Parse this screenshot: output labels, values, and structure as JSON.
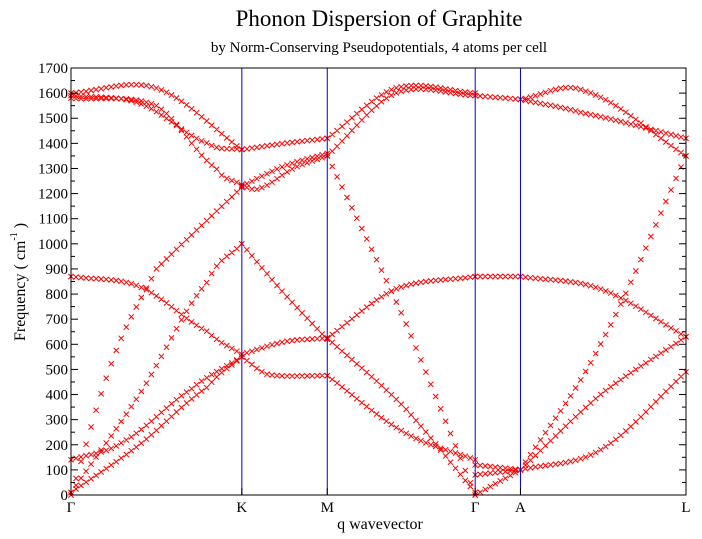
{
  "chart_data": {
    "type": "scatter",
    "title": "Phonon Dispersion of Graphite",
    "subtitle": "by Norm-Conserving Pseudopotentials, 4 atoms per cell",
    "xlabel": "q wavevector",
    "ylabel_prefix": "Frequency ( cm",
    "ylabel_sup": "-1",
    "ylabel_suffix": " )",
    "ylim": [
      0,
      1700
    ],
    "y_ticks": [
      0,
      100,
      200,
      300,
      400,
      500,
      600,
      700,
      800,
      900,
      1000,
      1100,
      1200,
      1300,
      1400,
      1500,
      1600,
      1700
    ],
    "x_points": [
      {
        "label": "Γ",
        "x": 0
      },
      {
        "label": "K",
        "x": 1.0
      },
      {
        "label": "M",
        "x": 1.5
      },
      {
        "label": "Γ",
        "x": 2.366
      },
      {
        "label": "A",
        "x": 2.631
      },
      {
        "label": "L",
        "x": 3.6
      }
    ],
    "xlim": [
      0,
      3.6
    ],
    "grid": "vertical lines at high-symmetry points",
    "marker": "x",
    "marker_color": "#ff0000",
    "line_color": "#0000cc",
    "series": [
      {
        "x": [
          0,
          0.5,
          1.0
        ],
        "values": [
          1600,
          1620,
          1375
        ]
      },
      {
        "x": [
          0,
          0.4,
          0.8,
          1.0
        ],
        "values": [
          1590,
          1560,
          1400,
          1375
        ]
      },
      {
        "x": [
          0,
          0.5,
          0.85,
          1.0
        ],
        "values": [
          1580,
          1550,
          1300,
          1235
        ]
      },
      {
        "x": [
          0,
          0.25,
          0.5,
          1.0
        ],
        "values": [
          0,
          550,
          900,
          1225
        ]
      },
      {
        "x": [
          0,
          0.4,
          0.8,
          1.0
        ],
        "values": [
          10,
          400,
          850,
          1000
        ]
      },
      {
        "x": [
          0,
          0.4,
          0.8,
          1.0
        ],
        "values": [
          870,
          830,
          650,
          560
        ]
      },
      {
        "x": [
          0,
          0.4,
          0.8,
          1.0
        ],
        "values": [
          10,
          200,
          430,
          550
        ]
      },
      {
        "x": [
          0,
          0.3,
          0.7,
          1.0
        ],
        "values": [
          140,
          210,
          420,
          550
        ]
      },
      {
        "x": [
          1.0,
          1.25,
          1.5
        ],
        "values": [
          1375,
          1400,
          1420
        ]
      },
      {
        "x": [
          1.0,
          1.1,
          1.3,
          1.5
        ],
        "values": [
          1230,
          1220,
          1300,
          1350
        ]
      },
      {
        "x": [
          1.0,
          1.25,
          1.5
        ],
        "values": [
          1230,
          1310,
          1360
        ]
      },
      {
        "x": [
          1.0,
          1.25,
          1.5
        ],
        "values": [
          1000,
          800,
          620
        ]
      },
      {
        "x": [
          1.0,
          1.25,
          1.5
        ],
        "values": [
          560,
          610,
          625
        ]
      },
      {
        "x": [
          1.0,
          1.15,
          1.5
        ],
        "values": [
          550,
          480,
          475
        ]
      },
      {
        "x": [
          1.5,
          1.9,
          2.366
        ],
        "values": [
          1420,
          1620,
          1600
        ]
      },
      {
        "x": [
          1.5,
          1.9,
          2.366
        ],
        "values": [
          1350,
          1600,
          1590
        ]
      },
      {
        "x": [
          1.5,
          1.9,
          2.366
        ],
        "values": [
          625,
          820,
          870
        ]
      },
      {
        "x": [
          1.5,
          1.95,
          2.366
        ],
        "values": [
          1350,
          700,
          0
        ]
      },
      {
        "x": [
          1.5,
          1.95,
          2.366
        ],
        "values": [
          625,
          350,
          10
        ]
      },
      {
        "x": [
          1.5,
          1.95,
          2.366
        ],
        "values": [
          475,
          250,
          140
        ]
      },
      {
        "x": [
          2.366,
          2.631
        ],
        "values": [
          1590,
          1575
        ]
      },
      {
        "x": [
          2.366,
          2.631
        ],
        "values": [
          870,
          870
        ]
      },
      {
        "x": [
          2.366,
          2.631
        ],
        "values": [
          120,
          100
        ]
      },
      {
        "x": [
          2.366,
          2.631
        ],
        "values": [
          80,
          100
        ]
      },
      {
        "x": [
          2.366,
          2.631
        ],
        "values": [
          0,
          100
        ]
      },
      {
        "x": [
          2.631,
          3.0,
          3.6
        ],
        "values": [
          1575,
          1610,
          1350
        ]
      },
      {
        "x": [
          2.631,
          3.0,
          3.6
        ],
        "values": [
          1575,
          1520,
          1420
        ]
      },
      {
        "x": [
          2.631,
          3.1,
          3.6
        ],
        "values": [
          870,
          820,
          630
        ]
      },
      {
        "x": [
          2.631,
          3.1,
          3.6
        ],
        "values": [
          100,
          600,
          1350
        ]
      },
      {
        "x": [
          2.631,
          3.1,
          3.6
        ],
        "values": [
          100,
          400,
          630
        ]
      },
      {
        "x": [
          2.631,
          3.1,
          3.6
        ],
        "values": [
          100,
          180,
          490
        ]
      }
    ]
  }
}
